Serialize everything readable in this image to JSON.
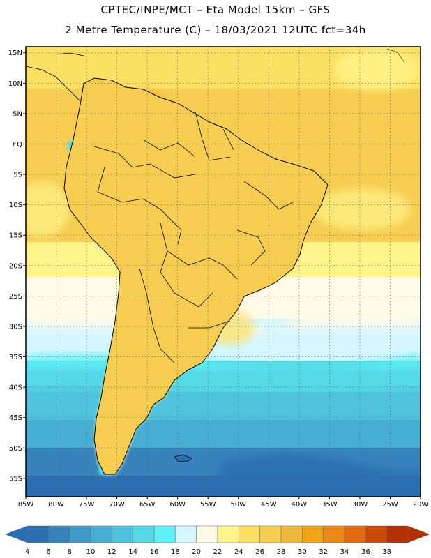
{
  "header": {
    "line1": "CPTEC/INPE/MCT –  Eta Model 15km – GFS",
    "line2": "2 Metre Temperature (C) – 18/03/2021 12UTC fct=34h"
  },
  "map": {
    "lon_range": [
      -85,
      -20
    ],
    "lat_range": [
      -58,
      16
    ],
    "lat_labels": [
      "15N",
      "10N",
      "5N",
      "EQ",
      "5S",
      "10S",
      "15S",
      "20S",
      "25S",
      "30S",
      "35S",
      "40S",
      "45S",
      "50S",
      "55S"
    ],
    "lat_values": [
      15,
      10,
      5,
      0,
      -5,
      -10,
      -15,
      -20,
      -25,
      -30,
      -35,
      -40,
      -45,
      -50,
      -55
    ],
    "lon_labels": [
      "85W",
      "80W",
      "75W",
      "70W",
      "65W",
      "60W",
      "55W",
      "50W",
      "45W",
      "40W",
      "35W",
      "30W",
      "25W",
      "20W"
    ],
    "lon_values": [
      -85,
      -80,
      -75,
      -70,
      -65,
      -60,
      -55,
      -50,
      -45,
      -40,
      -35,
      -30,
      -25,
      -20
    ],
    "grid": "dotted"
  },
  "colorbar": {
    "labels": [
      "4",
      "6",
      "8",
      "10",
      "12",
      "14",
      "16",
      "18",
      "20",
      "22",
      "24",
      "26",
      "28",
      "30",
      "32",
      "34",
      "36",
      "38"
    ],
    "colors": [
      "#2c6fb0",
      "#3784bd",
      "#3f9ac9",
      "#47aed3",
      "#4fc3dd",
      "#55d9e6",
      "#5ef0f4",
      "#d4f7ff",
      "#fffbe6",
      "#fff48a",
      "#fbe064",
      "#f6cd50",
      "#eeb83c",
      "#f0a518",
      "#ea8a1a",
      "#e06a10",
      "#cc4a08",
      "#b33205"
    ]
  }
}
